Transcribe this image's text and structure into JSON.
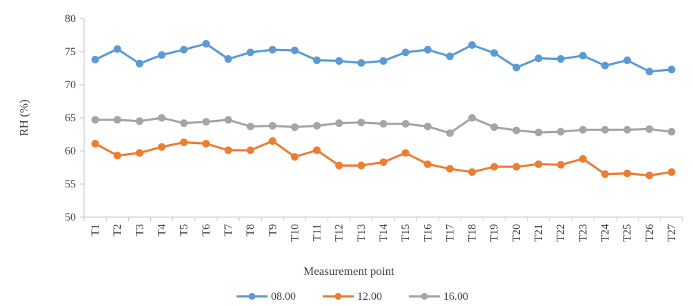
{
  "chart_data": {
    "type": "line",
    "title": "",
    "xlabel": "Measurement point",
    "ylabel": "RH (%)",
    "ylim": [
      50,
      80
    ],
    "yticks": [
      "50",
      "55",
      "60",
      "65",
      "70",
      "75",
      "80"
    ],
    "grid": false,
    "legend_position": "bottom",
    "categories": [
      "T1",
      "T2",
      "T3",
      "T4",
      "T5",
      "T6",
      "T7",
      "T8",
      "T9",
      "T10",
      "T11",
      "T12",
      "T13",
      "T14",
      "T15",
      "T16",
      "T17",
      "T18",
      "T19",
      "T20",
      "T21",
      "T22",
      "T23",
      "T24",
      "T25",
      "T26",
      "T27"
    ],
    "series": [
      {
        "name": "08.00",
        "color": "#5b9bd5",
        "values": [
          73.8,
          75.4,
          73.2,
          74.5,
          75.3,
          76.2,
          73.9,
          74.9,
          75.3,
          75.2,
          73.7,
          73.6,
          73.3,
          73.6,
          74.9,
          75.3,
          74.3,
          76.0,
          74.8,
          72.6,
          74.0,
          73.9,
          74.4,
          72.9,
          73.7,
          72.0,
          72.3
        ]
      },
      {
        "name": "12.00",
        "color": "#ed7d31",
        "values": [
          61.1,
          59.3,
          59.7,
          60.6,
          61.3,
          61.1,
          60.1,
          60.1,
          61.5,
          59.1,
          60.1,
          57.8,
          57.8,
          58.3,
          59.7,
          58.0,
          57.3,
          56.8,
          57.6,
          57.6,
          58.0,
          57.9,
          58.8,
          56.5,
          56.6,
          56.3,
          56.8
        ]
      },
      {
        "name": "16.00",
        "color": "#a5a5a5",
        "values": [
          64.7,
          64.7,
          64.5,
          65.0,
          64.2,
          64.4,
          64.7,
          63.7,
          63.8,
          63.6,
          63.8,
          64.2,
          64.3,
          64.1,
          64.1,
          63.7,
          62.7,
          65.0,
          63.6,
          63.1,
          62.8,
          62.9,
          63.2,
          63.2,
          63.2,
          63.3,
          62.9
        ]
      }
    ]
  }
}
